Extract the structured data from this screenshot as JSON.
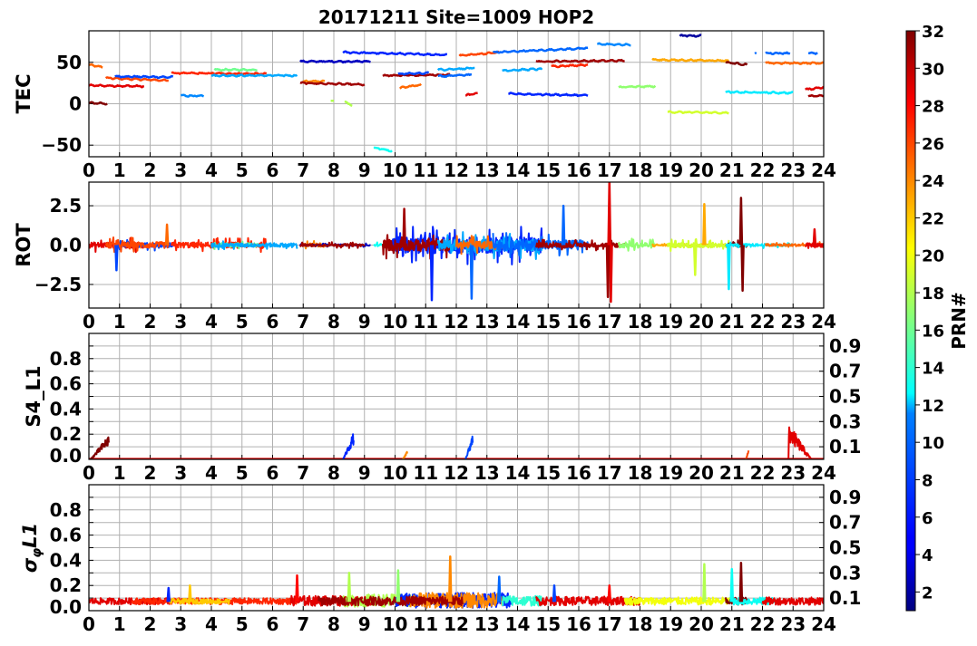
{
  "chart_data": {
    "type": "line",
    "title": "20171211 Site=1009 HOP2",
    "xlabel": "",
    "xlim": [
      0,
      24
    ],
    "xticks": [
      "0",
      "1",
      "2",
      "3",
      "4",
      "5",
      "6",
      "7",
      "8",
      "9",
      "10",
      "11",
      "12",
      "13",
      "14",
      "15",
      "16",
      "17",
      "18",
      "19",
      "20",
      "21",
      "22",
      "23",
      "24"
    ],
    "grid": true,
    "colorbar": {
      "label": "PRN#",
      "range": [
        1,
        32
      ],
      "colormap": "jet",
      "ticks": [
        "2",
        "4",
        "6",
        "8",
        "10",
        "12",
        "14",
        "16",
        "18",
        "20",
        "22",
        "24",
        "26",
        "28",
        "30",
        "32"
      ]
    },
    "panels": [
      {
        "ylabel": "TEC",
        "ylim": [
          -64,
          88
        ],
        "yticks": [
          -50,
          0,
          50
        ],
        "yticklabels": [
          "−50",
          "0",
          "50"
        ],
        "segments_note": "prn, start hour, end hour, start value, end value",
        "segments": [
          [
            25,
            0.0,
            0.45,
            47,
            44
          ],
          [
            32,
            0.0,
            0.6,
            1,
            0
          ],
          [
            29,
            0.0,
            1.8,
            22,
            21
          ],
          [
            26,
            0.55,
            2.6,
            31,
            28
          ],
          [
            7,
            0.85,
            2.75,
            33,
            32
          ],
          [
            27,
            2.7,
            5.8,
            37,
            36
          ],
          [
            9,
            3.0,
            3.75,
            10,
            9
          ],
          [
            16,
            4.1,
            5.5,
            41,
            41
          ],
          [
            10,
            4.0,
            6.8,
            34,
            34
          ],
          [
            3,
            6.9,
            9.2,
            51,
            51
          ],
          [
            24,
            7.0,
            7.7,
            27,
            27
          ],
          [
            31,
            6.9,
            9.0,
            25,
            23
          ],
          [
            18,
            7.9,
            8.0,
            3,
            3
          ],
          [
            18,
            8.35,
            8.6,
            2,
            -2
          ],
          [
            6,
            8.3,
            11.7,
            62,
            59
          ],
          [
            13,
            9.3,
            9.9,
            -53,
            -57
          ],
          [
            31,
            9.6,
            11.8,
            34,
            35
          ],
          [
            7,
            10.1,
            11.1,
            36,
            37
          ],
          [
            25,
            10.15,
            10.85,
            19,
            23
          ],
          [
            10,
            11.4,
            12.6,
            41,
            43
          ],
          [
            8,
            11.4,
            12.5,
            33,
            35
          ],
          [
            29,
            12.3,
            12.7,
            10,
            13
          ],
          [
            26,
            12.1,
            13.4,
            58,
            62
          ],
          [
            8,
            13.2,
            16.3,
            62,
            67
          ],
          [
            9,
            16.6,
            17.7,
            72,
            71
          ],
          [
            2,
            19.3,
            20.0,
            82,
            82
          ],
          [
            31,
            14.6,
            17.5,
            51,
            52
          ],
          [
            27,
            15.1,
            16.3,
            45,
            47
          ],
          [
            10,
            13.5,
            14.8,
            40,
            42
          ],
          [
            6,
            13.7,
            16.3,
            12,
            10
          ],
          [
            17,
            17.3,
            18.5,
            20,
            21
          ],
          [
            19,
            18.9,
            20.9,
            -10,
            -11
          ],
          [
            23,
            18.4,
            20.9,
            53,
            52
          ],
          [
            32,
            20.8,
            21.5,
            50,
            47
          ],
          [
            12,
            20.8,
            23.0,
            14,
            13
          ],
          [
            8,
            21.75,
            21.8,
            61,
            60
          ],
          [
            8,
            22.1,
            22.9,
            61,
            61
          ],
          [
            8,
            23.5,
            23.8,
            61,
            61
          ],
          [
            25,
            22.1,
            24.0,
            49,
            49
          ],
          [
            29,
            23.4,
            24.0,
            17,
            20
          ],
          [
            31,
            23.5,
            24.0,
            9,
            10
          ]
        ]
      },
      {
        "ylabel": "ROT",
        "ylim": [
          -4,
          4
        ],
        "yticks": [
          -2.5,
          0,
          2.5
        ],
        "yticklabels": [
          "−2.5",
          "0.0",
          "2.5"
        ],
        "bursts_note": "prn, start hour, end hour, noise amplitude",
        "bursts": [
          [
            29,
            0.0,
            1.8,
            0.45
          ],
          [
            7,
            0.85,
            2.75,
            0.35
          ],
          [
            26,
            0.55,
            2.6,
            0.5
          ],
          [
            27,
            2.7,
            5.8,
            0.45
          ],
          [
            16,
            4.1,
            5.5,
            0.35
          ],
          [
            10,
            4.0,
            6.8,
            0.3
          ],
          [
            24,
            7.0,
            7.7,
            0.3
          ],
          [
            3,
            6.9,
            9.2,
            0.12
          ],
          [
            31,
            6.9,
            9.0,
            0.2
          ],
          [
            13,
            9.3,
            9.9,
            0.2
          ],
          [
            6,
            9.9,
            14.8,
            1.3
          ],
          [
            31,
            9.6,
            11.8,
            0.9
          ],
          [
            10,
            11.4,
            14.8,
            0.9
          ],
          [
            25,
            12.0,
            13.5,
            0.6
          ],
          [
            8,
            13.2,
            16.3,
            0.8
          ],
          [
            31,
            14.6,
            17.5,
            0.35
          ],
          [
            17,
            17.3,
            18.5,
            0.45
          ],
          [
            23,
            18.4,
            20.9,
            0.15
          ],
          [
            19,
            18.9,
            20.9,
            0.4
          ],
          [
            32,
            20.8,
            21.5,
            0.35
          ],
          [
            12,
            20.8,
            23.0,
            0.2
          ],
          [
            25,
            22.1,
            24.0,
            0.2
          ],
          [
            29,
            23.4,
            24.0,
            0.3
          ]
        ],
        "spikes_note": "prn, hour, value",
        "spikes": [
          [
            7,
            0.9,
            -1.6
          ],
          [
            25,
            2.55,
            1.3
          ],
          [
            6,
            11.2,
            -3.5
          ],
          [
            8,
            12.5,
            -3.4
          ],
          [
            31,
            10.3,
            2.3
          ],
          [
            8,
            15.5,
            2.5
          ],
          [
            29,
            17.0,
            4.0
          ],
          [
            29,
            17.05,
            -3.6
          ],
          [
            31,
            16.95,
            -3.3
          ],
          [
            23,
            20.1,
            2.6
          ],
          [
            19,
            19.8,
            -1.9
          ],
          [
            12,
            20.9,
            -2.8
          ],
          [
            32,
            21.3,
            3.0
          ],
          [
            32,
            21.35,
            -2.9
          ],
          [
            29,
            23.7,
            1.0
          ]
        ]
      },
      {
        "ylabel": "S4_L1",
        "ylim": [
          0,
          1
        ],
        "yticks": [
          0,
          0.1,
          0.2,
          0.3,
          0.4,
          0.5,
          0.6,
          0.7,
          0.8,
          0.9
        ],
        "yticklabels": [
          "0.0",
          "0.1",
          "0.2",
          "0.3",
          "0.4",
          "0.5",
          "0.6",
          "0.7",
          "0.8",
          "0.9"
        ],
        "baseline": 0.003,
        "bumps_note": "prn, start hour, end hour, peak value",
        "bumps": [
          [
            32,
            0.05,
            0.65,
            0.18
          ],
          [
            6,
            8.3,
            8.65,
            0.2
          ],
          [
            24,
            10.25,
            10.4,
            0.06
          ],
          [
            7,
            12.3,
            12.55,
            0.2
          ],
          [
            26,
            21.45,
            21.55,
            0.07
          ],
          [
            29,
            22.85,
            23.6,
            0.27
          ]
        ]
      },
      {
        "ylabel": "σφL1",
        "ylabel_main": "σ",
        "ylabel_sub": "φ",
        "ylabel_tail": "L1",
        "ylim": [
          0,
          1
        ],
        "yticks": [
          0,
          0.1,
          0.2,
          0.3,
          0.4,
          0.5,
          0.6,
          0.7,
          0.8,
          0.9
        ],
        "yticklabels": [
          "0.0",
          "0.1",
          "0.2",
          "0.3",
          "0.4",
          "0.5",
          "0.6",
          "0.7",
          "0.8",
          "0.9"
        ],
        "baseline": 0.07,
        "bursts": [
          [
            29,
            0.0,
            2.6,
            0.025
          ],
          [
            27,
            1.4,
            6.8,
            0.025
          ],
          [
            22,
            2.6,
            4.6,
            0.02
          ],
          [
            29,
            6.6,
            9.2,
            0.04
          ],
          [
            18,
            8.3,
            10.5,
            0.05
          ],
          [
            6,
            10.0,
            13.8,
            0.06
          ],
          [
            24,
            10.5,
            13.5,
            0.06
          ],
          [
            31,
            7.5,
            12.2,
            0.035
          ],
          [
            14,
            13.5,
            14.8,
            0.04
          ],
          [
            29,
            14.6,
            18.0,
            0.035
          ],
          [
            20,
            17.5,
            21.0,
            0.03
          ],
          [
            32,
            20.8,
            21.5,
            0.03
          ],
          [
            13,
            21.0,
            22.5,
            0.03
          ],
          [
            29,
            22.0,
            24.0,
            0.03
          ]
        ],
        "spikes": [
          [
            6,
            2.6,
            0.18
          ],
          [
            22,
            3.3,
            0.2
          ],
          [
            28,
            6.8,
            0.28
          ],
          [
            18,
            8.5,
            0.3
          ],
          [
            17,
            10.1,
            0.32
          ],
          [
            24,
            11.8,
            0.43
          ],
          [
            8,
            13.4,
            0.27
          ],
          [
            7,
            15.2,
            0.2
          ],
          [
            28,
            17.0,
            0.2
          ],
          [
            18,
            20.1,
            0.37
          ],
          [
            13,
            21.0,
            0.33
          ],
          [
            32,
            21.3,
            0.38
          ]
        ]
      }
    ]
  }
}
